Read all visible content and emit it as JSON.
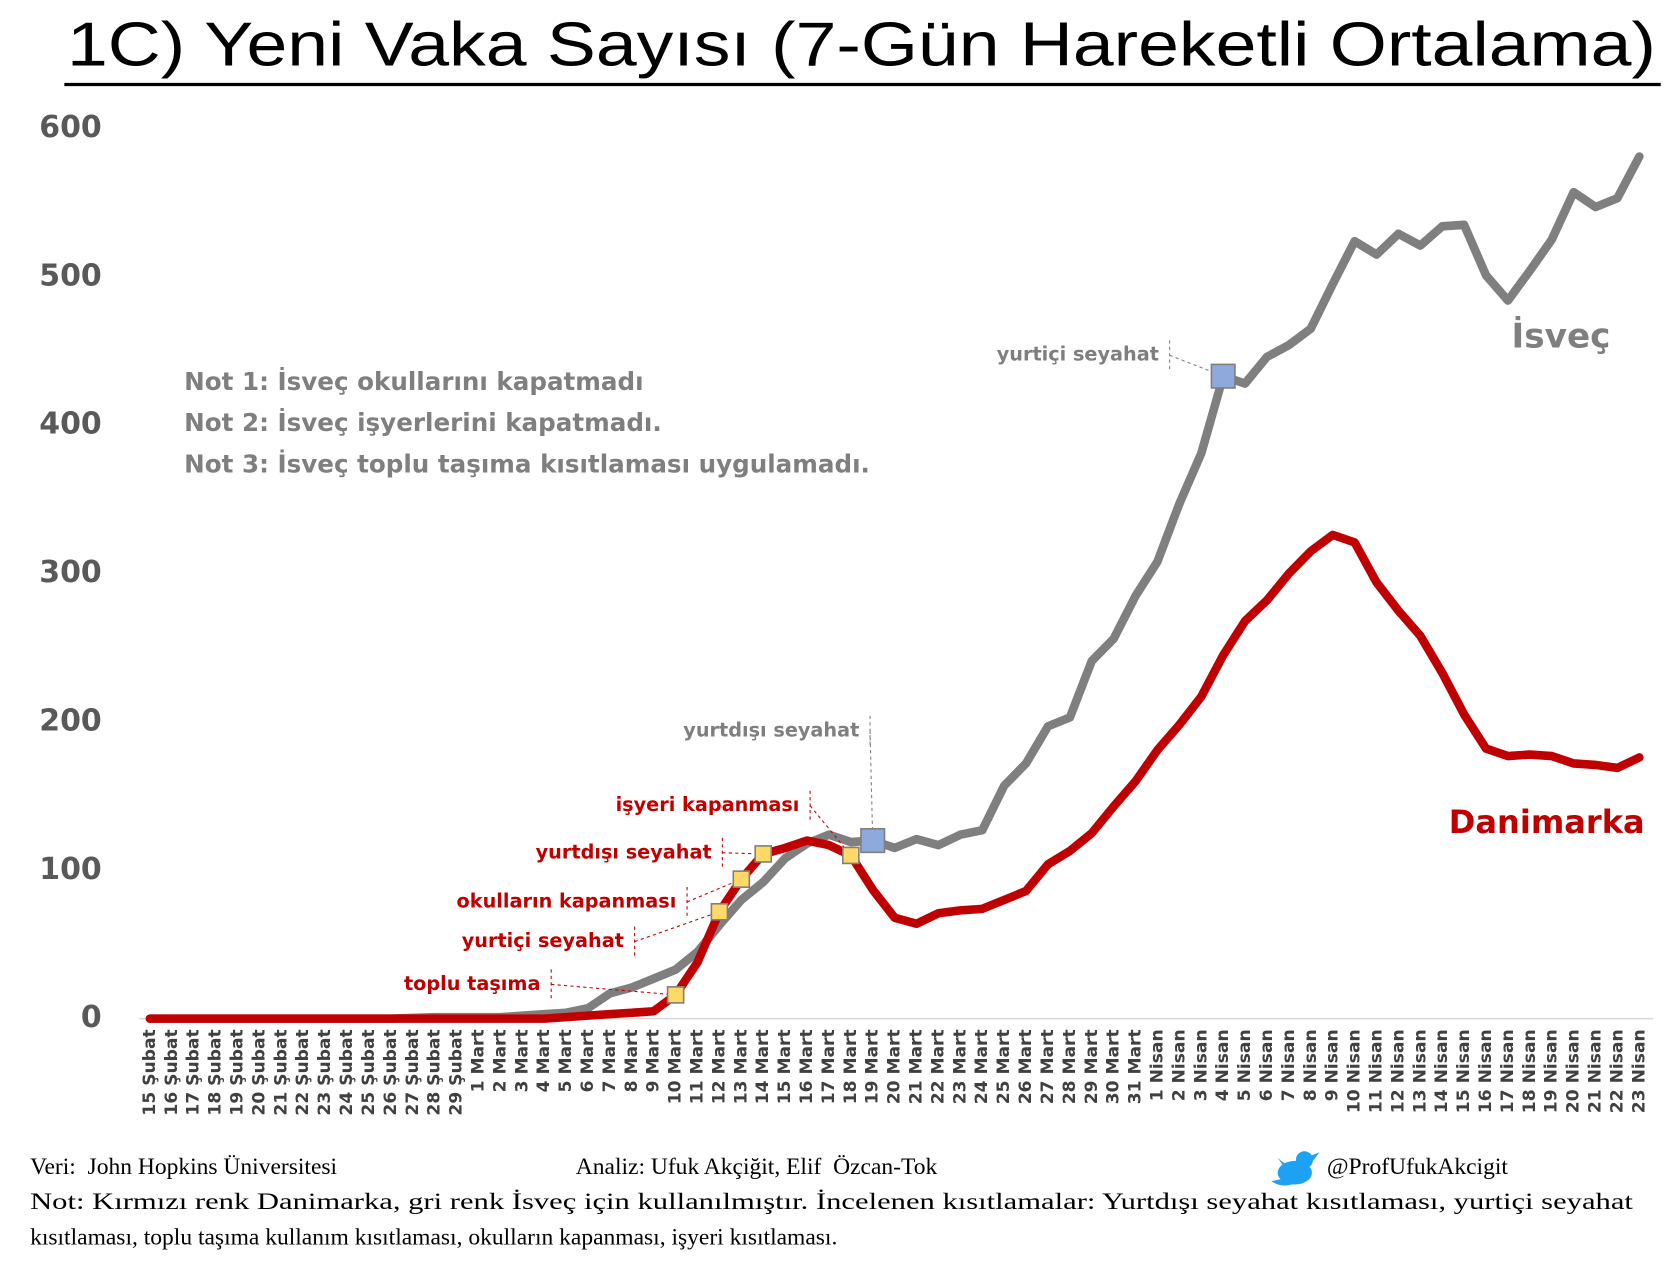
{
  "chart_data": {
    "type": "line",
    "title": "1C) Yeni Vaka Sayısı (7-Gün Hareketli Ortalama)",
    "categories": [
      "15 Şubat",
      "16 Şubat",
      "17 Şubat",
      "18 Şubat",
      "19 Şubat",
      "20 Şubat",
      "21 Şubat",
      "22 Şubat",
      "23 Şubat",
      "24 Şubat",
      "25 Şubat",
      "26 Şubat",
      "27 Şubat",
      "28 Şubat",
      "29 Şubat",
      "1 Mart",
      "2 Mart",
      "3 Mart",
      "4 Mart",
      "5 Mart",
      "6 Mart",
      "7 Mart",
      "8 Mart",
      "9 Mart",
      "10 Mart",
      "11 Mart",
      "12 Mart",
      "13 Mart",
      "14 Mart",
      "15 Mart",
      "16 Mart",
      "17 Mart",
      "18 Mart",
      "19 Mart",
      "20 Mart",
      "21 Mart",
      "22 Mart",
      "23 Mart",
      "24 Mart",
      "25 Mart",
      "26 Mart",
      "27 Mart",
      "28 Mart",
      "29 Mart",
      "30 Mart",
      "31 Mart",
      "1 Nisan",
      "2 Nisan",
      "3 Nisan",
      "4 Nisan",
      "5 Nisan",
      "6 Nisan",
      "7 Nisan",
      "8 Nisan",
      "9 Nisan",
      "10 Nisan",
      "11 Nisan",
      "12 Nisan",
      "13 Nisan",
      "14 Nisan",
      "15 Nisan",
      "16 Nisan",
      "17 Nisan",
      "18 Nisan",
      "19 Nisan",
      "20 Nisan",
      "21 Nisan",
      "22 Nisan",
      "23 Nisan"
    ],
    "series": [
      {
        "name": "İsveç",
        "color": "#7f7f7f",
        "values": [
          0,
          0,
          0,
          0,
          0,
          0,
          0,
          0,
          0,
          0,
          0,
          0,
          0.5,
          1,
          1,
          1,
          1,
          2,
          3,
          4,
          7,
          17,
          21,
          27,
          33,
          45,
          63,
          80,
          92,
          108,
          118,
          124,
          119,
          120,
          115,
          121,
          117,
          124,
          127,
          157,
          172,
          197,
          203,
          241,
          256,
          285,
          308,
          347,
          381,
          433,
          428,
          446,
          454,
          465,
          495,
          524,
          515,
          529,
          521,
          534,
          535,
          501,
          484,
          504,
          525,
          557,
          547,
          553,
          581
        ]
      },
      {
        "name": "Danimarka",
        "color": "#c00000",
        "values": [
          0,
          0,
          0,
          0,
          0,
          0,
          0,
          0,
          0,
          0,
          0,
          0,
          0,
          0,
          0,
          0,
          0,
          0,
          0,
          1,
          2,
          3,
          4,
          5,
          16,
          38,
          72,
          94,
          111,
          115,
          120,
          117,
          110,
          87,
          68,
          64,
          71,
          73,
          74,
          80,
          86,
          104,
          113,
          125,
          143,
          160,
          181,
          198,
          217,
          245,
          268,
          282,
          300,
          315,
          326,
          321,
          294,
          275,
          258,
          233,
          205,
          182,
          177,
          178,
          177,
          172,
          171,
          169,
          176
        ]
      }
    ],
    "ylim": [
      0,
      600
    ],
    "yticks": [
      0,
      100,
      200,
      300,
      400,
      500,
      600
    ],
    "grid": false,
    "notes": [
      "Not 1: İsveç okullarını kapatmadı",
      "Not 2: İsveç işyerlerini kapatmadı.",
      "Not 3: İsveç toplu taşıma kısıtlaması uygulamadı."
    ],
    "annotations": [
      "toplu taşıma",
      "yurtiçi seyahat",
      "okulların kapanması",
      "yurtdışı seyahat",
      "işyeri kapanması",
      "yurtdışı seyahat",
      "yurtiçi seyahat"
    ],
    "footer": {
      "source": "Veri:  John Hopkins Üniversitesi",
      "analysis": "Analiz: Ufuk Akçiğit, Elif  Özcan-Tok",
      "handle": "@ProfUfukAkcigit",
      "note": [
        "Not: Kırmızı renk Danimarka, gri renk İsveç için kullanılmıştır. İncelenen kısıtlamalar: Yurtdışı seyahat kısıtlaması, yurtiçi seyahat",
        "kısıtlaması, toplu taşıma kullanım kısıtlaması, okulların kapanması, işyeri kısıtlaması."
      ]
    }
  }
}
